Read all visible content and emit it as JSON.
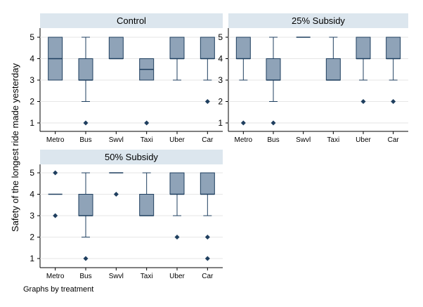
{
  "chart_data": {
    "type": "box",
    "ylabel": "Safety of the longest ride made yesterday",
    "note": "Graphs by treatment",
    "ylim": [
      1,
      5
    ],
    "yticks": [
      1,
      2,
      3,
      4,
      5
    ],
    "categories": [
      "Metro",
      "Bus",
      "Swvl",
      "Taxi",
      "Uber",
      "Car"
    ],
    "colors": {
      "box_fill": "#8fa3b8",
      "box_stroke": "#1f3f5f",
      "outlier": "#1f3f5f",
      "title_bg": "#dce6ee",
      "grid": "#e6e6e6"
    },
    "panels": [
      {
        "title": "Control",
        "boxes": [
          {
            "category": "Metro",
            "min": 3,
            "q1": 3,
            "median": 4,
            "q3": 5,
            "max": 5,
            "outliers": []
          },
          {
            "category": "Bus",
            "min": 2,
            "q1": 3,
            "median": 3,
            "q3": 4,
            "max": 5,
            "outliers": [
              1
            ]
          },
          {
            "category": "Swvl",
            "min": 4,
            "q1": 4,
            "median": 4,
            "q3": 5,
            "max": 5,
            "outliers": []
          },
          {
            "category": "Taxi",
            "min": 3,
            "q1": 3,
            "median": 3.5,
            "q3": 4,
            "max": 4,
            "outliers": [
              1
            ]
          },
          {
            "category": "Uber",
            "min": 3,
            "q1": 4,
            "median": 4,
            "q3": 5,
            "max": 5,
            "outliers": []
          },
          {
            "category": "Car",
            "min": 3,
            "q1": 4,
            "median": 4,
            "q3": 5,
            "max": 5,
            "outliers": [
              2
            ]
          }
        ]
      },
      {
        "title": "25% Subsidy",
        "boxes": [
          {
            "category": "Metro",
            "min": 3,
            "q1": 4,
            "median": 4,
            "q3": 5,
            "max": 5,
            "outliers": [
              1
            ]
          },
          {
            "category": "Bus",
            "min": 2,
            "q1": 3,
            "median": 3,
            "q3": 4,
            "max": 5,
            "outliers": [
              1
            ]
          },
          {
            "category": "Swvl",
            "min": 5,
            "q1": 5,
            "median": 5,
            "q3": 5,
            "max": 5,
            "outliers": []
          },
          {
            "category": "Taxi",
            "min": 3,
            "q1": 3,
            "median": 3,
            "q3": 4,
            "max": 5,
            "outliers": []
          },
          {
            "category": "Uber",
            "min": 3,
            "q1": 4,
            "median": 4,
            "q3": 5,
            "max": 5,
            "outliers": [
              2
            ]
          },
          {
            "category": "Car",
            "min": 3,
            "q1": 4,
            "median": 4,
            "q3": 5,
            "max": 5,
            "outliers": [
              2
            ]
          }
        ]
      },
      {
        "title": "50% Subsidy",
        "boxes": [
          {
            "category": "Metro",
            "min": 4,
            "q1": 4,
            "median": 4,
            "q3": 4,
            "max": 4,
            "outliers": [
              3,
              5
            ]
          },
          {
            "category": "Bus",
            "min": 2,
            "q1": 3,
            "median": 3,
            "q3": 4,
            "max": 5,
            "outliers": [
              1
            ]
          },
          {
            "category": "Swvl",
            "min": 5,
            "q1": 5,
            "median": 5,
            "q3": 5,
            "max": 5,
            "outliers": [
              4
            ]
          },
          {
            "category": "Taxi",
            "min": 3,
            "q1": 3,
            "median": 3,
            "q3": 4,
            "max": 5,
            "outliers": []
          },
          {
            "category": "Uber",
            "min": 3,
            "q1": 4,
            "median": 4,
            "q3": 5,
            "max": 5,
            "outliers": [
              2
            ]
          },
          {
            "category": "Car",
            "min": 3,
            "q1": 4,
            "median": 4,
            "q3": 5,
            "max": 5,
            "outliers": [
              1,
              2
            ]
          }
        ]
      }
    ]
  }
}
